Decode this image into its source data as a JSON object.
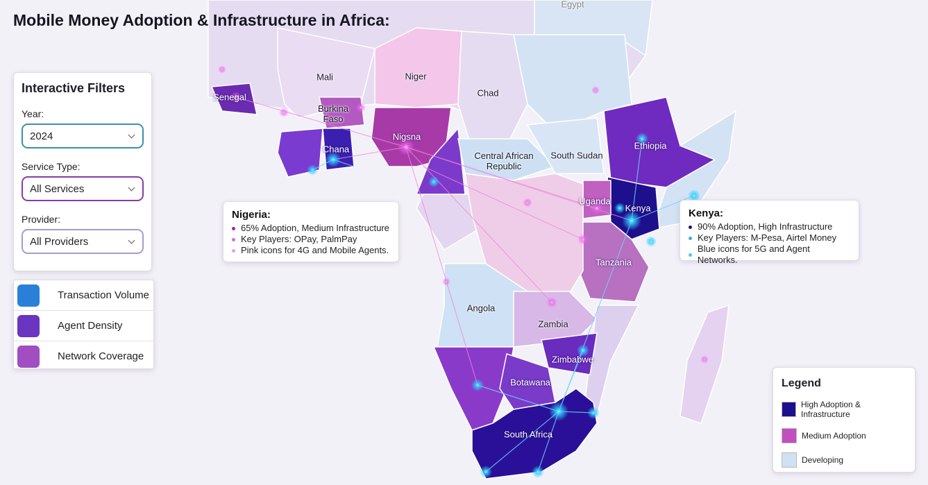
{
  "header": {
    "title": "Mobile Money Adoption & Infrastructure in Africa:"
  },
  "filters": {
    "title": "Interactive Filters",
    "fields": [
      {
        "label": "Year:",
        "value": "2024"
      },
      {
        "label": "Service Type:",
        "value": "All Services"
      },
      {
        "label": "Provider:",
        "value": "All Providers"
      }
    ]
  },
  "layers": [
    "Transaction Volume",
    "Agent Density",
    "Network Coverage"
  ],
  "map": {
    "labels": [
      "Egypt",
      "Senegal",
      "Mali",
      "Niger",
      "Chad",
      "Burkina Faso",
      "Chana",
      "Nigsna",
      "Central African Republic",
      "South Sudan",
      "Ethiopia",
      "Uganda",
      "Kenya",
      "Tanzania",
      "Angola",
      "Zambia",
      "Zimbabwe",
      "Botawana",
      "South Africa"
    ]
  },
  "callouts": [
    {
      "title": "Nigeria:",
      "items": [
        "65% Adoption, Medium Infrastructure",
        "Key Players: OPay, PalmPay",
        "Pink icons for 4G and Mobile Agents."
      ]
    },
    {
      "title": "Kenya:",
      "items": [
        "90% Adoption, High Infrastructure",
        "Key Players: M-Pesa, Airtel Money",
        "Blue icons for 5G and Agent Networks."
      ]
    }
  ],
  "legend": {
    "title": "Legend",
    "items": [
      "High Adoption & Infrastructure",
      "Medium Adoption",
      "Developing"
    ]
  }
}
